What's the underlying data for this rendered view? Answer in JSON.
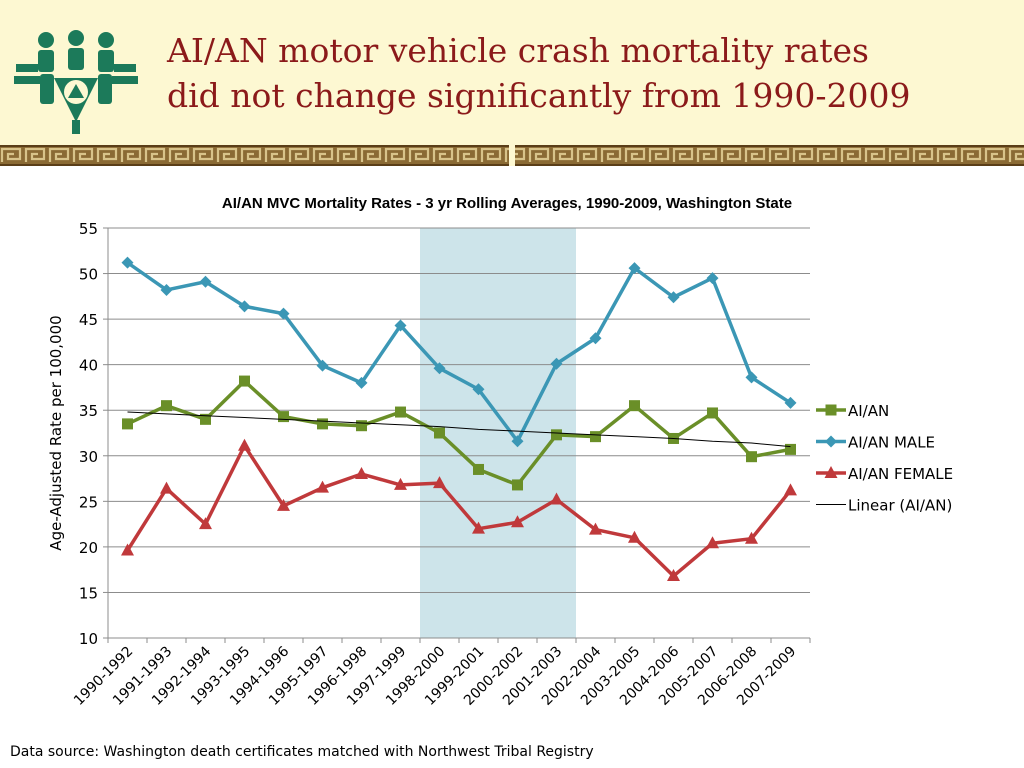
{
  "slide": {
    "title_line1": "AI/AN motor vehicle crash mortality rates",
    "title_line2": "did not change significantly from 1990-2009",
    "footer": "Data source: Washington death certificates matched with Northwest Tribal Registry",
    "logo_icon": "tribal-emblem-icon",
    "colors": {
      "title": "#8b1a1a",
      "header_bg": "#fdf8d2",
      "logo": "#1c7a5a",
      "band": "#7a5a2a"
    }
  },
  "chart_data": {
    "type": "line",
    "title": "AI/AN MVC Mortality Rates - 3 yr Rolling Averages, 1990-2009, Washington State",
    "xlabel": "",
    "ylabel": "Age-Adjusted Rate per 100,000",
    "ylim": [
      10,
      55
    ],
    "yticks": [
      10,
      15,
      20,
      25,
      30,
      35,
      40,
      45,
      50,
      55
    ],
    "grid": true,
    "legend_position": "right",
    "categories": [
      "1990-1992",
      "1991-1993",
      "1992-1994",
      "1993-1995",
      "1994-1996",
      "1995-1997",
      "1996-1998",
      "1997-1999",
      "1998-2000",
      "1999-2001",
      "2000-2002",
      "2001-2003",
      "2002-2004",
      "2003-2005",
      "2004-2006",
      "2005-2007",
      "2006-2008",
      "2007-2009"
    ],
    "highlight": {
      "from": "1998-2000",
      "to": "2001-2003",
      "color": "#cde4ea"
    },
    "series": [
      {
        "name": "AI/AN",
        "color": "#6a8f28",
        "marker": "square",
        "values": [
          33.5,
          35.5,
          34.0,
          38.2,
          34.3,
          33.5,
          33.3,
          34.8,
          32.5,
          28.5,
          26.8,
          32.3,
          32.1,
          35.5,
          31.9,
          34.7,
          29.9,
          30.7
        ]
      },
      {
        "name": "AI/AN MALE",
        "color": "#3b97b5",
        "marker": "diamond",
        "values": [
          51.2,
          48.2,
          49.1,
          46.4,
          45.6,
          39.9,
          38.0,
          44.3,
          39.6,
          37.3,
          31.6,
          40.1,
          42.9,
          50.6,
          47.4,
          49.5,
          38.6,
          35.8
        ]
      },
      {
        "name": "AI/AN FEMALE",
        "color": "#c0393b",
        "marker": "triangle",
        "values": [
          19.6,
          26.4,
          22.5,
          31.1,
          24.5,
          26.5,
          28.0,
          26.8,
          27.0,
          22.0,
          22.7,
          25.2,
          21.9,
          21.0,
          16.8,
          20.4,
          20.9,
          26.2
        ]
      },
      {
        "name": "Linear (AI/AN)",
        "color": "#000000",
        "marker": "none",
        "values": [
          34.8,
          34.6,
          34.4,
          34.2,
          34.0,
          33.8,
          33.6,
          33.4,
          33.2,
          32.9,
          32.7,
          32.5,
          32.3,
          32.1,
          31.9,
          31.6,
          31.4,
          31.0
        ]
      }
    ]
  }
}
